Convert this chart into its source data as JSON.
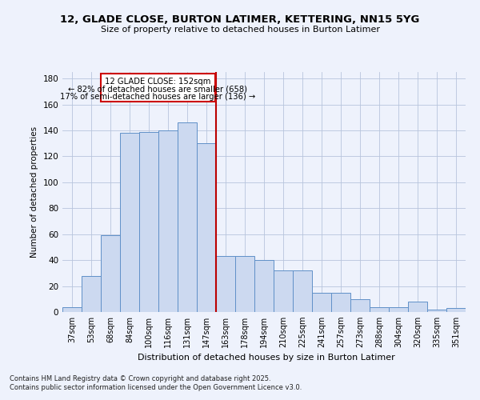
{
  "title_line1": "12, GLADE CLOSE, BURTON LATIMER, KETTERING, NN15 5YG",
  "title_line2": "Size of property relative to detached houses in Burton Latimer",
  "xlabel": "Distribution of detached houses by size in Burton Latimer",
  "ylabel": "Number of detached properties",
  "bar_labels": [
    "37sqm",
    "53sqm",
    "68sqm",
    "84sqm",
    "100sqm",
    "116sqm",
    "131sqm",
    "147sqm",
    "163sqm",
    "178sqm",
    "194sqm",
    "210sqm",
    "225sqm",
    "241sqm",
    "257sqm",
    "273sqm",
    "288sqm",
    "304sqm",
    "320sqm",
    "335sqm",
    "351sqm"
  ],
  "bar_values": [
    4,
    28,
    59,
    138,
    139,
    140,
    146,
    130,
    43,
    43,
    40,
    32,
    32,
    15,
    15,
    10,
    4,
    4,
    8,
    2,
    3
  ],
  "bar_color": "#ccd9f0",
  "bar_edge_color": "#6090c8",
  "vline_x_index": 7,
  "vline_color": "#bb0000",
  "annotation_line1": "12 GLADE CLOSE: 152sqm",
  "annotation_line2": "← 82% of detached houses are smaller (658)",
  "annotation_line3": "17% of semi-detached houses are larger (136) →",
  "annotation_box_color": "#cc0000",
  "ylim_max": 185,
  "yticks": [
    0,
    20,
    40,
    60,
    80,
    100,
    120,
    140,
    160,
    180
  ],
  "footnote1": "Contains HM Land Registry data © Crown copyright and database right 2025.",
  "footnote2": "Contains public sector information licensed under the Open Government Licence v3.0.",
  "bg_color": "#eef2fc"
}
